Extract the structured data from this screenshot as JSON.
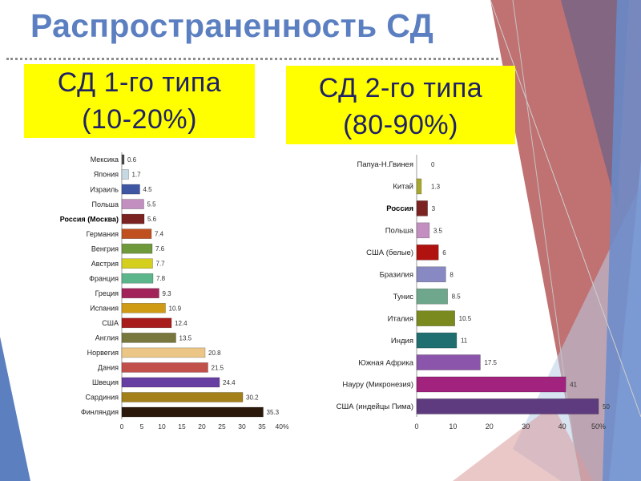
{
  "slide": {
    "title": "Распространенность СД",
    "type1_box": {
      "name": "СД 1-го типа",
      "share": "(10-20%)"
    },
    "type2_box": {
      "name": "СД 2-го типа",
      "share": "(80-90%)"
    }
  },
  "colors": {
    "title": "#5b7fc0",
    "box_background": "#ffff00",
    "box_text": "#1f2266",
    "accent_red": "#a83a3a",
    "accent_blue": "#5b7fbf"
  },
  "chart_data": [
    {
      "type": "bar",
      "orientation": "horizontal",
      "categories": [
        "Мексика",
        "Япония",
        "Израиль",
        "Польша",
        "Россия (Москва)",
        "Германия",
        "Венгрия",
        "Австрия",
        "Франция",
        "Греция",
        "Испания",
        "США",
        "Англия",
        "Норвегия",
        "Дания",
        "Швеция",
        "Сардиния",
        "Финляндия"
      ],
      "values": [
        0.6,
        1.7,
        4.5,
        5.5,
        5.6,
        7.4,
        7.6,
        7.7,
        7.8,
        9.3,
        10.9,
        12.4,
        13.5,
        20.8,
        21.5,
        24.4,
        30.2,
        35.3
      ],
      "value_labels": [
        "0.6",
        "1.7",
        "4.5",
        "5.5",
        "5.6",
        "7.4",
        "7.6",
        "7.7",
        "7.8",
        "9.3",
        "10.9",
        "12.4",
        "13.5",
        "20.8",
        "21.5",
        "24.4",
        "30.2",
        "35.3"
      ],
      "bar_colors": [
        "#4d4d4d",
        "#c6d9e3",
        "#3f56a2",
        "#c28fc0",
        "#7b2323",
        "#c0501f",
        "#6e9a3c",
        "#d4cf1c",
        "#5cb68b",
        "#a2235a",
        "#d09b14",
        "#a81c1c",
        "#77773e",
        "#ecc686",
        "#c2504a",
        "#673ea2",
        "#a3801a",
        "#2b1a0c"
      ],
      "emphasized_index": 4,
      "xlim": [
        0,
        40
      ],
      "xticks": [
        0,
        5,
        10,
        15,
        20,
        25,
        30,
        35,
        40
      ],
      "xtick_labels": [
        "0",
        "5",
        "10",
        "15",
        "20",
        "25",
        "30",
        "35",
        "40%"
      ],
      "grid": false
    },
    {
      "type": "bar",
      "orientation": "horizontal",
      "categories": [
        "Папуа-Н.Гвинея",
        "Китай",
        "Россия",
        "Польша",
        "США (белые)",
        "Бразилия",
        "Тунис",
        "Италия",
        "Индия",
        "Южная Африка",
        "Науру (Микронезия)",
        "США (индейцы Пима)"
      ],
      "values": [
        0,
        1.3,
        3,
        3.5,
        6,
        8,
        8.5,
        10.5,
        11,
        17.5,
        41,
        50
      ],
      "value_labels": [
        "0",
        "1.3",
        "3",
        "3.5",
        "6",
        "8",
        "8.5",
        "10.5",
        "11",
        "17.5",
        "41",
        "50"
      ],
      "bar_colors": [
        "#888888",
        "#a8a82a",
        "#7b2323",
        "#c28fc0",
        "#b0120f",
        "#8888c2",
        "#6fa78c",
        "#7a8a1e",
        "#1f6e70",
        "#8a55aa",
        "#a2237d",
        "#5e3a7e"
      ],
      "emphasized_index": 2,
      "xlim": [
        0,
        50
      ],
      "xticks": [
        0,
        10,
        20,
        30,
        40,
        50
      ],
      "xtick_labels": [
        "0",
        "10",
        "20",
        "30",
        "40",
        "50%"
      ],
      "grid": false
    }
  ]
}
